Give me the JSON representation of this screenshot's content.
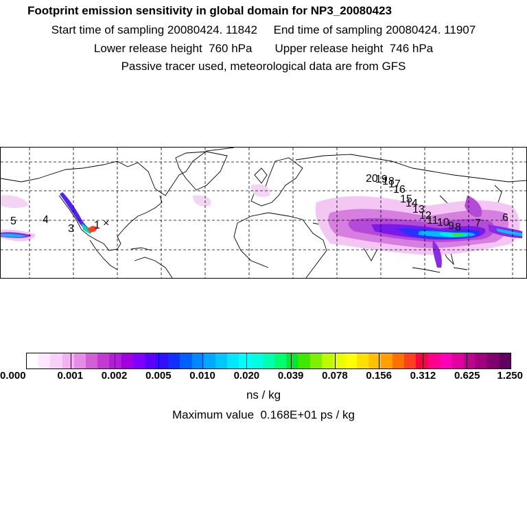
{
  "header": {
    "title": "Footprint emission sensitivity in global domain for NP3_20080423",
    "sampling": "Start time of sampling 20080424. 11842     End time of sampling 20080424. 11907",
    "release": "Lower release height  760 hPa       Upper release height  746 hPa",
    "info": "Passive tracer used, meteorological data are from GFS"
  },
  "map": {
    "day_labels": [
      "5",
      "4",
      "3",
      "1",
      "20",
      "19",
      "18",
      "17",
      "16",
      "15",
      "14",
      "13",
      "12",
      "11",
      "10",
      "9",
      "8",
      "7",
      "6"
    ],
    "receptor_marker": "×"
  },
  "colorbar": {
    "colors": [
      "#ffffff",
      "#fde8fd",
      "#f9d0f9",
      "#f3b3f3",
      "#e68ce6",
      "#d25ed8",
      "#c23ad0",
      "#b01ed8",
      "#a000e0",
      "#8000ff",
      "#5a00ff",
      "#3010ff",
      "#1030ff",
      "#0060ff",
      "#0088ff",
      "#00a8ff",
      "#00c8ff",
      "#00e8ff",
      "#00ffff",
      "#00ffe0",
      "#00ffb0",
      "#00ff70",
      "#00e830",
      "#40e800",
      "#80f000",
      "#c0f800",
      "#e8ff00",
      "#ffff00",
      "#ffe000",
      "#ffc000",
      "#ffa000",
      "#ff7000",
      "#ff4020",
      "#ff0040",
      "#ff0090",
      "#ff00b8",
      "#e000a0",
      "#c00090",
      "#a00080",
      "#800070",
      "#600060"
    ],
    "tick_labels": [
      "0.000",
      "0.001",
      "0.002",
      "0.005",
      "0.010",
      "0.020",
      "0.039",
      "0.078",
      "0.156",
      "0.312",
      "0.625",
      "1.250"
    ],
    "units": "ns / kg",
    "max_value": "Maximum value  0.168E+01 ps / kg"
  }
}
